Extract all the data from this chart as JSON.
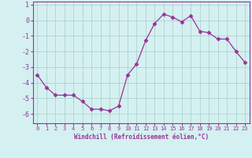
{
  "hours": [
    0,
    1,
    2,
    3,
    4,
    5,
    6,
    7,
    8,
    9,
    10,
    11,
    12,
    13,
    14,
    15,
    16,
    17,
    18,
    19,
    20,
    21,
    22,
    23
  ],
  "windchill": [
    -3.5,
    -4.3,
    -4.8,
    -4.8,
    -4.8,
    -5.2,
    -5.7,
    -5.7,
    -5.8,
    -5.5,
    -3.5,
    -2.8,
    -1.3,
    -0.2,
    0.4,
    0.2,
    -0.1,
    0.3,
    -0.7,
    -0.8,
    -1.2,
    -1.2,
    -2.0,
    -2.7
  ],
  "line_color": "#993399",
  "marker": "D",
  "marker_size": 2.5,
  "bg_color": "#d4f0f0",
  "grid_color": "#aacccc",
  "xlabel": "Windchill (Refroidissement éolien,°C)",
  "xlim_min": -0.5,
  "xlim_max": 23.5,
  "ylim_min": -6.6,
  "ylim_max": 1.2,
  "yticks": [
    -6,
    -5,
    -4,
    -3,
    -2,
    -1,
    0,
    1
  ],
  "xticks": [
    0,
    1,
    2,
    3,
    4,
    5,
    6,
    7,
    8,
    9,
    10,
    11,
    12,
    13,
    14,
    15,
    16,
    17,
    18,
    19,
    20,
    21,
    22,
    23
  ],
  "tick_color": "#993399",
  "label_color": "#993399",
  "spine_color": "#993399"
}
